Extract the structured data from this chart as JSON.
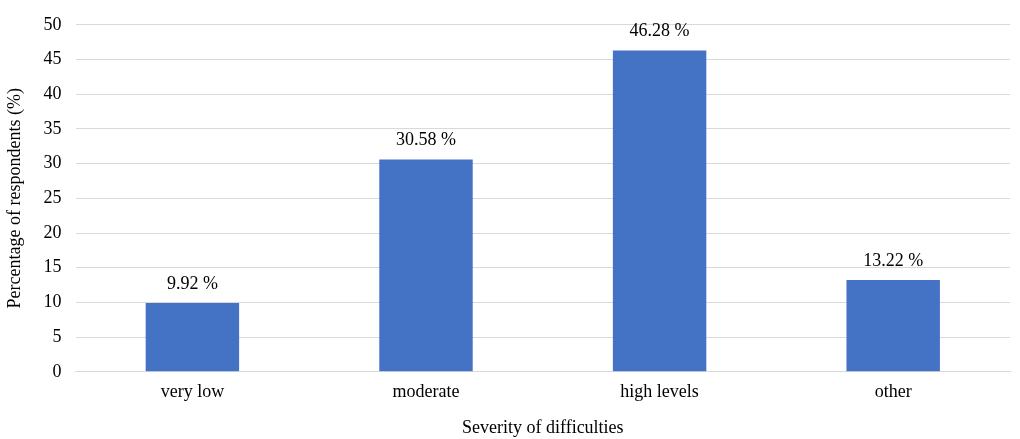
{
  "chart_data": {
    "type": "bar",
    "xlabel": "Severity of difficulties",
    "ylabel": "Percentage of respondents (%)",
    "categories": [
      "very low",
      "moderate",
      "high levels",
      "other"
    ],
    "values": [
      9.92,
      30.58,
      46.28,
      13.22
    ],
    "value_labels": [
      "9.92 %",
      "30.58 %",
      "46.28 %",
      "13.22 %"
    ],
    "color": "#4472c4",
    "ylim": [
      0,
      50
    ],
    "yticks": [
      0,
      5,
      10,
      15,
      20,
      25,
      30,
      35,
      40,
      45,
      50
    ],
    "grid": "y",
    "legend": false
  }
}
